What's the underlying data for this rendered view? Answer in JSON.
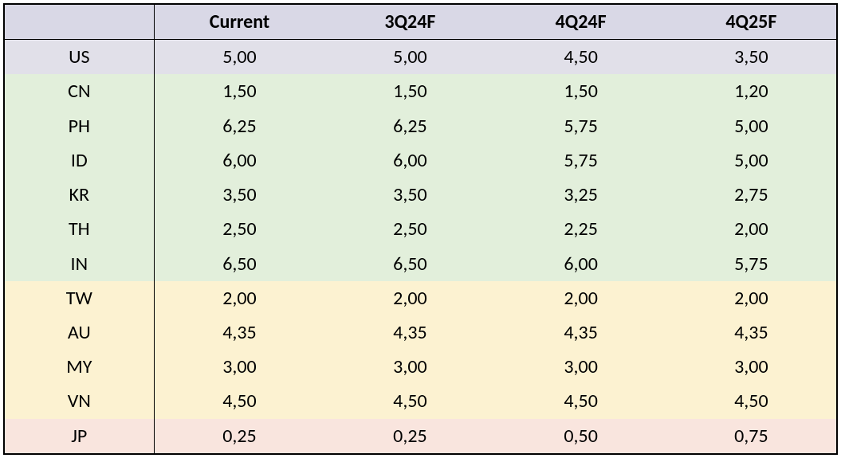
{
  "table": {
    "type": "table",
    "columns": [
      "",
      "Current",
      "3Q24F",
      "4Q24F",
      "4Q25F"
    ],
    "header_bg": "#d9d8e6",
    "border_color": "#000000",
    "font_family": "Calibri",
    "header_fontsize": 24,
    "body_fontsize": 24,
    "header_fontweight": 700,
    "body_fontweight": 400,
    "row_bg_colors": {
      "us": "#e1e0e9",
      "green": "#e2efdb",
      "amber": "#fcf2d1",
      "pink": "#f9e5de"
    },
    "rows": [
      {
        "id": "us",
        "label": "US",
        "values": [
          "5,00",
          "5,00",
          "4,50",
          "3,50"
        ],
        "bg": "us"
      },
      {
        "id": "cn",
        "label": "CN",
        "values": [
          "1,50",
          "1,50",
          "1,50",
          "1,20"
        ],
        "bg": "green"
      },
      {
        "id": "ph",
        "label": "PH",
        "values": [
          "6,25",
          "6,25",
          "5,75",
          "5,00"
        ],
        "bg": "green"
      },
      {
        "id": "id",
        "label": "ID",
        "values": [
          "6,00",
          "6,00",
          "5,75",
          "5,00"
        ],
        "bg": "green"
      },
      {
        "id": "kr",
        "label": "KR",
        "values": [
          "3,50",
          "3,50",
          "3,25",
          "2,75"
        ],
        "bg": "green"
      },
      {
        "id": "th",
        "label": "TH",
        "values": [
          "2,50",
          "2,50",
          "2,25",
          "2,00"
        ],
        "bg": "green"
      },
      {
        "id": "in",
        "label": "IN",
        "values": [
          "6,50",
          "6,50",
          "6,00",
          "5,75"
        ],
        "bg": "green"
      },
      {
        "id": "tw",
        "label": "TW",
        "values": [
          "2,00",
          "2,00",
          "2,00",
          "2,00"
        ],
        "bg": "amber"
      },
      {
        "id": "au",
        "label": "AU",
        "values": [
          "4,35",
          "4,35",
          "4,35",
          "4,35"
        ],
        "bg": "amber"
      },
      {
        "id": "my",
        "label": "MY",
        "values": [
          "3,00",
          "3,00",
          "3,00",
          "3,00"
        ],
        "bg": "amber"
      },
      {
        "id": "vn",
        "label": "VN",
        "values": [
          "4,50",
          "4,50",
          "4,50",
          "4,50"
        ],
        "bg": "amber"
      },
      {
        "id": "jp",
        "label": "JP",
        "values": [
          "0,25",
          "0,25",
          "0,50",
          "0,75"
        ],
        "bg": "pink"
      }
    ]
  }
}
